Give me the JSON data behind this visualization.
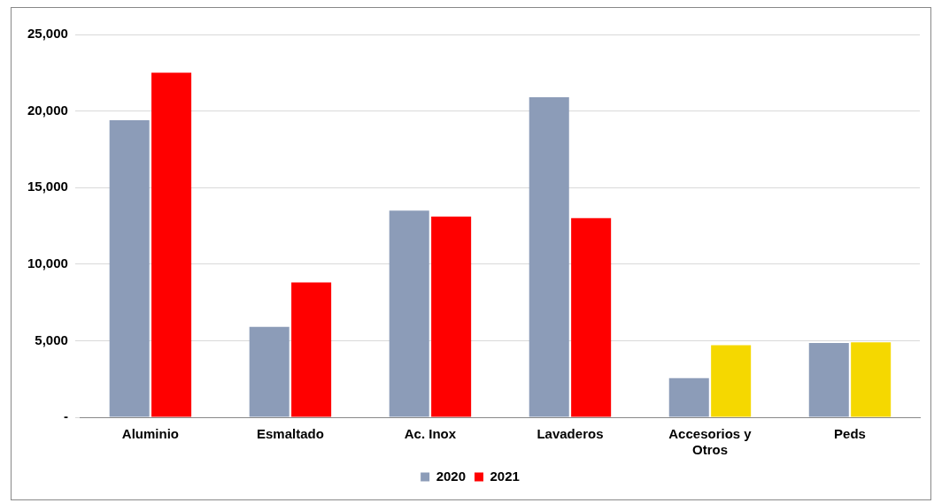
{
  "chart_data": {
    "type": "bar",
    "categories": [
      "Aluminio",
      "Esmaltado",
      "Ac. Inox",
      "Lavaderos",
      "Accesorios y Otros",
      "Peds"
    ],
    "series": [
      {
        "name": "2020",
        "color": "#8c9cb8",
        "values": [
          19400,
          5900,
          13500,
          20900,
          2550,
          4850
        ]
      },
      {
        "name": "2021",
        "color": "#ff0000",
        "colors": [
          "#ff0000",
          "#ff0000",
          "#ff0000",
          "#ff0000",
          "#f5d800",
          "#f5d800"
        ],
        "values": [
          22500,
          8800,
          13100,
          13000,
          4700,
          4900
        ]
      }
    ],
    "ylim": [
      0,
      25000
    ],
    "yticks": [
      {
        "value": 0,
        "label": "-"
      },
      {
        "value": 5000,
        "label": "5,000"
      },
      {
        "value": 10000,
        "label": "10,000"
      },
      {
        "value": 15000,
        "label": "15,000"
      },
      {
        "value": 20000,
        "label": "20,000"
      },
      {
        "value": 25000,
        "label": "25,000"
      }
    ],
    "grid": "y",
    "legend": "bottom"
  }
}
